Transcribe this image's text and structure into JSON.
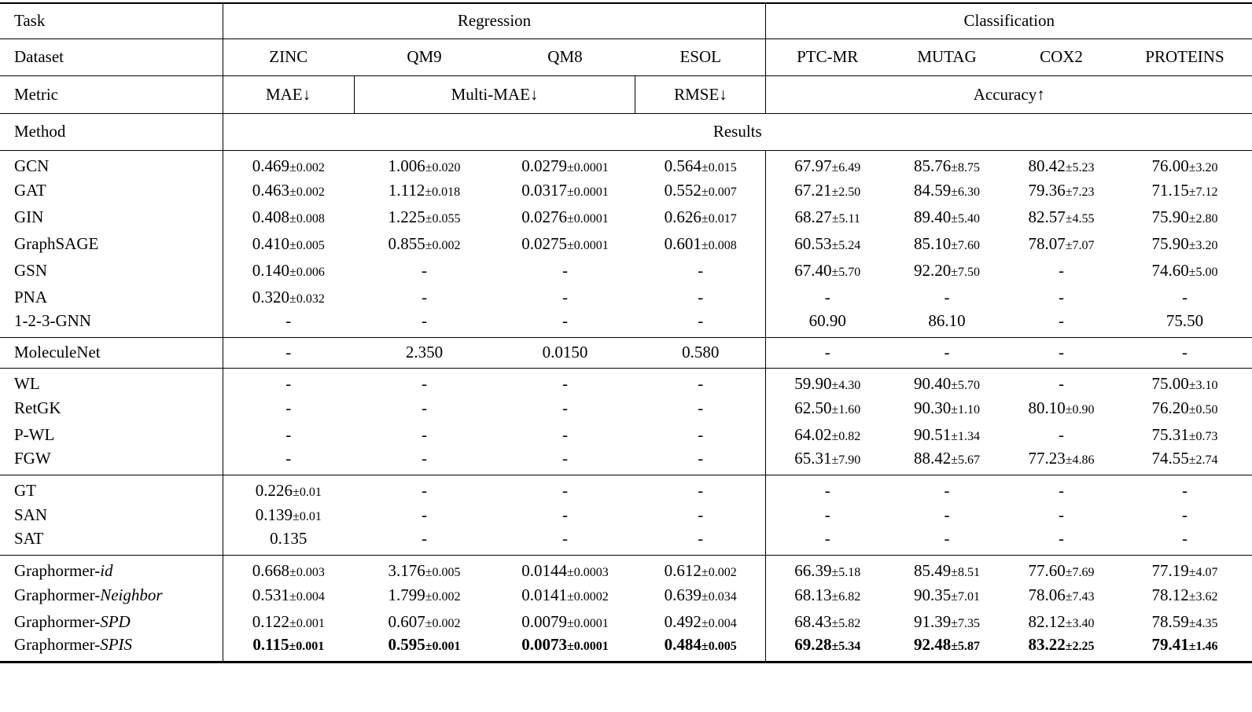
{
  "header": {
    "task_label": "Task",
    "dataset_label": "Dataset",
    "metric_label": "Metric",
    "method_label": "Method",
    "results_label": "Results",
    "task_groups": [
      {
        "label": "Regression"
      },
      {
        "label": "Classification"
      }
    ],
    "datasets": [
      "ZINC",
      "QM9",
      "QM8",
      "ESOL",
      "PTC-MR",
      "MUTAG",
      "COX2",
      "PROTEINS"
    ],
    "metrics": [
      {
        "label": "MAE↓",
        "span": 1
      },
      {
        "label": "Multi-MAE↓",
        "span": 2
      },
      {
        "label": "RMSE↓",
        "span": 1
      },
      {
        "label": "Accuracy↑",
        "span": 4
      }
    ]
  },
  "chart_data": {
    "type": "table",
    "columns": [
      "ZINC",
      "QM9",
      "QM8",
      "ESOL",
      "PTC-MR",
      "MUTAG",
      "COX2",
      "PROTEINS"
    ]
  },
  "groups": [
    {
      "name": "gnn-baselines",
      "rows": [
        {
          "method": "GCN",
          "suffix": "",
          "highlight": false,
          "values": [
            "0.469±0.002",
            "1.006±0.020",
            "0.0279±0.0001",
            "0.564±0.015",
            "67.97±6.49",
            "85.76±8.75",
            "80.42±5.23",
            "76.00±3.20"
          ]
        },
        {
          "method": "GAT",
          "suffix": "",
          "highlight": false,
          "values": [
            "0.463±0.002",
            "1.112±0.018",
            "0.0317±0.0001",
            "0.552±0.007",
            "67.21±2.50",
            "84.59±6.30",
            "79.36±7.23",
            "71.15±7.12"
          ]
        },
        {
          "method": "GIN",
          "suffix": "",
          "highlight": false,
          "values": [
            "0.408±0.008",
            "1.225±0.055",
            "0.0276±0.0001",
            "0.626±0.017",
            "68.27±5.11",
            "89.40±5.40",
            "82.57±4.55",
            "75.90±2.80"
          ]
        },
        {
          "method": "GraphSAGE",
          "suffix": "",
          "highlight": false,
          "values": [
            "0.410±0.005",
            "0.855±0.002",
            "0.0275±0.0001",
            "0.601±0.008",
            "60.53±5.24",
            "85.10±7.60",
            "78.07±7.07",
            "75.90±3.20"
          ]
        },
        {
          "method": "GSN",
          "suffix": "",
          "highlight": false,
          "values": [
            "0.140±0.006",
            "-",
            "-",
            "-",
            "67.40±5.70",
            "92.20±7.50",
            "-",
            "74.60±5.00"
          ]
        },
        {
          "method": "PNA",
          "suffix": "",
          "highlight": false,
          "values": [
            "0.320±0.032",
            "-",
            "-",
            "-",
            "-",
            "-",
            "-",
            "-"
          ]
        },
        {
          "method": "1-2-3-GNN",
          "suffix": "",
          "highlight": false,
          "values": [
            "-",
            "-",
            "-",
            "-",
            "60.90",
            "86.10",
            "-",
            "75.50"
          ]
        }
      ]
    },
    {
      "name": "moleculenet",
      "rows": [
        {
          "method": "MoleculeNet",
          "suffix": "",
          "highlight": false,
          "values": [
            "-",
            "2.350",
            "0.0150",
            "0.580",
            "-",
            "-",
            "-",
            "-"
          ]
        }
      ]
    },
    {
      "name": "graph-kernels",
      "rows": [
        {
          "method": "WL",
          "suffix": "",
          "highlight": false,
          "values": [
            "-",
            "-",
            "-",
            "-",
            "59.90±4.30",
            "90.40±5.70",
            "-",
            "75.00±3.10"
          ]
        },
        {
          "method": "RetGK",
          "suffix": "",
          "highlight": false,
          "values": [
            "-",
            "-",
            "-",
            "-",
            "62.50±1.60",
            "90.30±1.10",
            "80.10±0.90",
            "76.20±0.50"
          ]
        },
        {
          "method": "P-WL",
          "suffix": "",
          "highlight": false,
          "values": [
            "-",
            "-",
            "-",
            "-",
            "64.02±0.82",
            "90.51±1.34",
            "-",
            "75.31±0.73"
          ]
        },
        {
          "method": "FGW",
          "suffix": "",
          "highlight": false,
          "values": [
            "-",
            "-",
            "-",
            "-",
            "65.31±7.90",
            "88.42±5.67",
            "77.23±4.86",
            "74.55±2.74"
          ]
        }
      ]
    },
    {
      "name": "graph-transformers",
      "rows": [
        {
          "method": "GT",
          "suffix": "",
          "highlight": false,
          "values": [
            "0.226±0.01",
            "-",
            "-",
            "-",
            "-",
            "-",
            "-",
            "-"
          ]
        },
        {
          "method": "SAN",
          "suffix": "",
          "highlight": false,
          "values": [
            "0.139±0.01",
            "-",
            "-",
            "-",
            "-",
            "-",
            "-",
            "-"
          ]
        },
        {
          "method": "SAT",
          "suffix": "",
          "highlight": false,
          "values": [
            "0.135",
            "-",
            "-",
            "-",
            "-",
            "-",
            "-",
            "-"
          ]
        }
      ]
    },
    {
      "name": "graphormer-variants",
      "rows": [
        {
          "method": "Graphormer-",
          "suffix": "id",
          "highlight": false,
          "values": [
            "0.668±0.003",
            "3.176±0.005",
            "0.0144±0.0003",
            "0.612±0.002",
            "66.39±5.18",
            "85.49±8.51",
            "77.60±7.69",
            "77.19±4.07"
          ]
        },
        {
          "method": "Graphormer-",
          "suffix": "Neighbor",
          "highlight": false,
          "values": [
            "0.531±0.004",
            "1.799±0.002",
            "0.0141±0.0002",
            "0.639±0.034",
            "68.13±6.82",
            "90.35±7.01",
            "78.06±7.43",
            "78.12±3.62"
          ]
        },
        {
          "method": "Graphormer-",
          "suffix": "SPD",
          "highlight": false,
          "values": [
            "0.122±0.001",
            "0.607±0.002",
            "0.0079±0.0001",
            "0.492±0.004",
            "68.43±5.82",
            "91.39±7.35",
            "82.12±3.40",
            "78.59±4.35"
          ]
        },
        {
          "method": "Graphormer-",
          "suffix": "SPIS",
          "highlight": true,
          "values": [
            "0.115±0.001",
            "0.595±0.001",
            "0.0073±0.0001",
            "0.484±0.005",
            "69.28±5.34",
            "92.48±5.87",
            "83.22±2.25",
            "79.41±1.46"
          ]
        }
      ]
    }
  ]
}
